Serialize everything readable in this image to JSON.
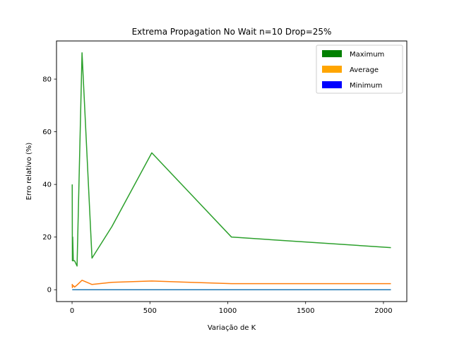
{
  "chart_data": {
    "type": "line",
    "title": "Extrema Propagation No Wait n=10 Drop=25%",
    "xlabel": "Variação de K",
    "ylabel": "Erro relativo (%)",
    "xlim": [
      -100,
      2150
    ],
    "ylim": [
      -4.5,
      94.5
    ],
    "xticks": [
      0,
      500,
      1000,
      1500,
      2000
    ],
    "yticks": [
      0,
      20,
      40,
      60,
      80
    ],
    "grid": false,
    "legend_position": "top-right",
    "legend": [
      {
        "label": "Maximum",
        "color": "#008000"
      },
      {
        "label": "Average",
        "color": "#ffa500"
      },
      {
        "label": "Minimum",
        "color": "#0000ff"
      }
    ],
    "series": [
      {
        "color": "#2ca02c",
        "x": [
          1,
          2,
          4,
          8,
          16,
          32,
          64,
          128,
          256,
          512,
          1024,
          2048
        ],
        "y": [
          40,
          11,
          20,
          11,
          11,
          9,
          90,
          12,
          24,
          52,
          20,
          16
        ]
      },
      {
        "color": "#ff7f0e",
        "x": [
          1,
          2,
          4,
          8,
          16,
          32,
          64,
          128,
          256,
          512,
          1024,
          2048
        ],
        "y": [
          2.2,
          0.8,
          1.3,
          1.6,
          1.0,
          1.8,
          3.6,
          2.0,
          2.8,
          3.3,
          2.3,
          2.3
        ]
      },
      {
        "color": "#1f77b4",
        "x": [
          1,
          2,
          4,
          8,
          16,
          32,
          64,
          128,
          256,
          512,
          1024,
          2048
        ],
        "y": [
          0,
          0,
          0,
          0,
          0,
          0,
          0,
          0,
          0,
          0,
          0,
          0
        ]
      }
    ]
  }
}
